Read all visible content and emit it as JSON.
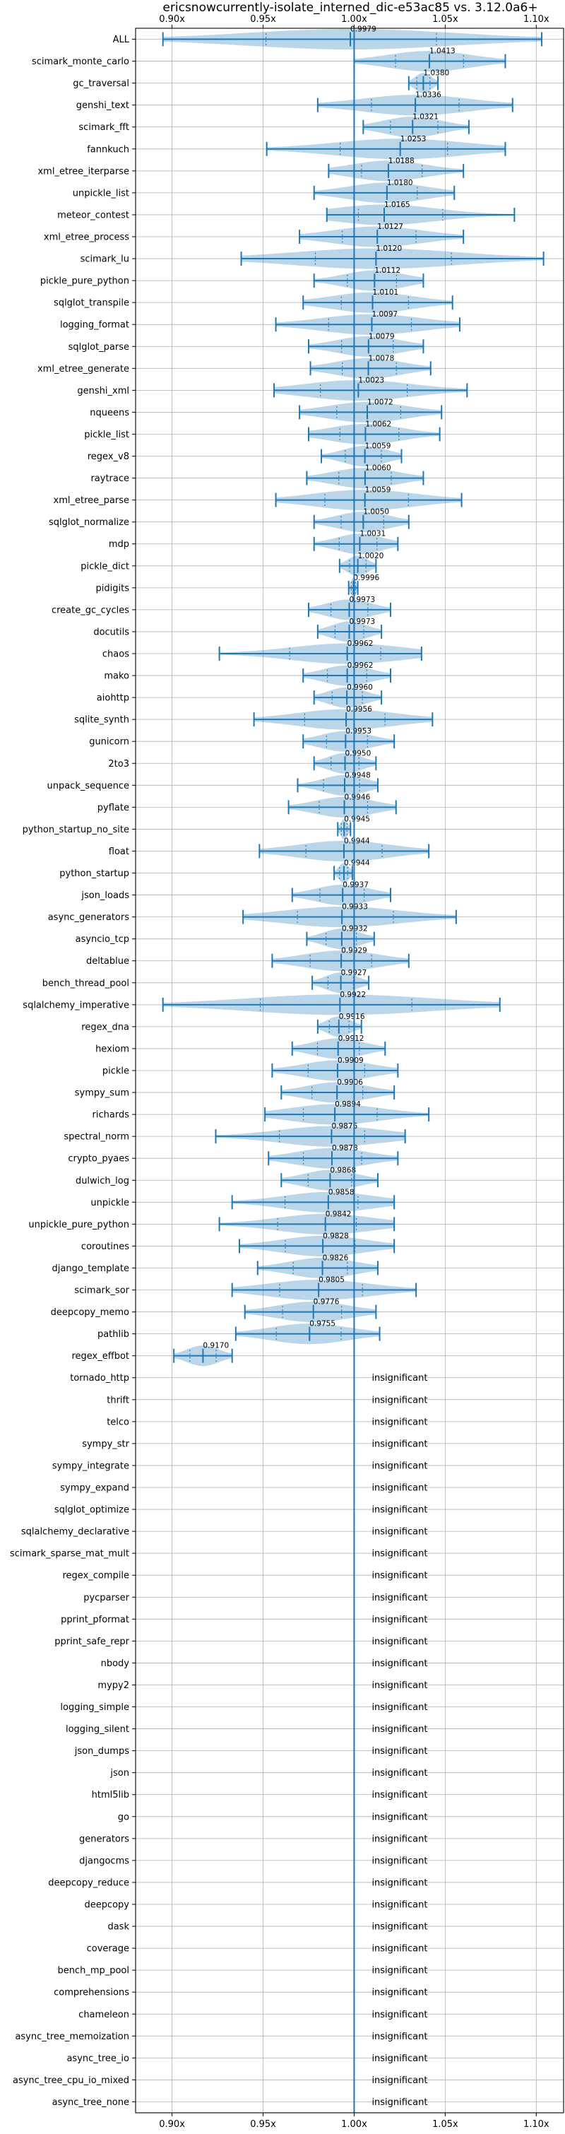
{
  "chart_data": {
    "type": "violin",
    "title": "ericsnowcurrently-isolate_interned_dic-e53ac85 vs. 3.12.0a6+",
    "xlim": [
      0.88,
      1.115
    ],
    "x_ticks": [
      0.9,
      0.95,
      1.0,
      1.05,
      1.1
    ],
    "x_tick_labels": [
      "0.90x",
      "0.95x",
      "1.00x",
      "1.05x",
      "1.10x"
    ],
    "reference_line": 1.0,
    "grid": true,
    "insignificant_text": "insignificant",
    "rows": [
      {
        "name": "ALL",
        "value": 0.9979,
        "label": "0.9979",
        "min": 0.895,
        "max": 1.103
      },
      {
        "name": "scimark_monte_carlo",
        "value": 1.0413,
        "label": "1.0413",
        "min": 1.0,
        "max": 1.083
      },
      {
        "name": "gc_traversal",
        "value": 1.038,
        "label": "1.0380",
        "min": 1.03,
        "max": 1.046
      },
      {
        "name": "genshi_text",
        "value": 1.0336,
        "label": "1.0336",
        "min": 0.98,
        "max": 1.087
      },
      {
        "name": "scimark_fft",
        "value": 1.0321,
        "label": "1.0321",
        "min": 1.005,
        "max": 1.063
      },
      {
        "name": "fannkuch",
        "value": 1.0253,
        "label": "1.0253",
        "min": 0.952,
        "max": 1.083
      },
      {
        "name": "xml_etree_iterparse",
        "value": 1.0188,
        "label": "1.0188",
        "min": 0.986,
        "max": 1.06
      },
      {
        "name": "unpickle_list",
        "value": 1.018,
        "label": "1.0180",
        "min": 0.978,
        "max": 1.055
      },
      {
        "name": "meteor_contest",
        "value": 1.0165,
        "label": "1.0165",
        "min": 0.985,
        "max": 1.088
      },
      {
        "name": "xml_etree_process",
        "value": 1.0127,
        "label": "1.0127",
        "min": 0.97,
        "max": 1.06
      },
      {
        "name": "scimark_lu",
        "value": 1.012,
        "label": "1.0120",
        "min": 0.938,
        "max": 1.104
      },
      {
        "name": "pickle_pure_python",
        "value": 1.0112,
        "label": "1.0112",
        "min": 0.978,
        "max": 1.038
      },
      {
        "name": "sqlglot_transpile",
        "value": 1.0101,
        "label": "1.0101",
        "min": 0.972,
        "max": 1.054
      },
      {
        "name": "logging_format",
        "value": 1.0097,
        "label": "1.0097",
        "min": 0.957,
        "max": 1.058
      },
      {
        "name": "sqlglot_parse",
        "value": 1.0079,
        "label": "1.0079",
        "min": 0.975,
        "max": 1.038
      },
      {
        "name": "xml_etree_generate",
        "value": 1.0078,
        "label": "1.0078",
        "min": 0.976,
        "max": 1.042
      },
      {
        "name": "genshi_xml",
        "value": 1.0023,
        "label": "1.0023",
        "min": 0.956,
        "max": 1.062
      },
      {
        "name": "nqueens",
        "value": 1.0072,
        "label": "1.0072",
        "min": 0.97,
        "max": 1.048
      },
      {
        "name": "pickle_list",
        "value": 1.0062,
        "label": "1.0062",
        "min": 0.975,
        "max": 1.047
      },
      {
        "name": "regex_v8",
        "value": 1.0059,
        "label": "1.0059",
        "min": 0.982,
        "max": 1.026
      },
      {
        "name": "raytrace",
        "value": 1.006,
        "label": "1.0060",
        "min": 0.974,
        "max": 1.038
      },
      {
        "name": "xml_etree_parse",
        "value": 1.0059,
        "label": "1.0059",
        "min": 0.957,
        "max": 1.059
      },
      {
        "name": "sqlglot_normalize",
        "value": 1.005,
        "label": "1.0050",
        "min": 0.978,
        "max": 1.03
      },
      {
        "name": "mdp",
        "value": 1.0031,
        "label": "1.0031",
        "min": 0.978,
        "max": 1.024
      },
      {
        "name": "pickle_dict",
        "value": 1.002,
        "label": "1.0020",
        "min": 0.992,
        "max": 1.012
      },
      {
        "name": "pidigits",
        "value": 0.9996,
        "label": "0.9996",
        "min": 0.997,
        "max": 1.002
      },
      {
        "name": "create_gc_cycles",
        "value": 0.9973,
        "label": "0.9973",
        "min": 0.975,
        "max": 1.02
      },
      {
        "name": "docutils",
        "value": 0.9973,
        "label": "0.9973",
        "min": 0.98,
        "max": 1.015
      },
      {
        "name": "chaos",
        "value": 0.9962,
        "label": "0.9962",
        "min": 0.926,
        "max": 1.037
      },
      {
        "name": "mako",
        "value": 0.9962,
        "label": "0.9962",
        "min": 0.972,
        "max": 1.02
      },
      {
        "name": "aiohttp",
        "value": 0.996,
        "label": "0.9960",
        "min": 0.978,
        "max": 1.015
      },
      {
        "name": "sqlite_synth",
        "value": 0.9956,
        "label": "0.9956",
        "min": 0.945,
        "max": 1.043
      },
      {
        "name": "gunicorn",
        "value": 0.9953,
        "label": "0.9953",
        "min": 0.972,
        "max": 1.022
      },
      {
        "name": "2to3",
        "value": 0.995,
        "label": "0.9950",
        "min": 0.978,
        "max": 1.012
      },
      {
        "name": "unpack_sequence",
        "value": 0.9948,
        "label": "0.9948",
        "min": 0.969,
        "max": 1.013
      },
      {
        "name": "pyflate",
        "value": 0.9946,
        "label": "0.9946",
        "min": 0.964,
        "max": 1.023
      },
      {
        "name": "python_startup_no_site",
        "value": 0.9945,
        "label": "0.9945",
        "min": 0.991,
        "max": 0.998
      },
      {
        "name": "float",
        "value": 0.9944,
        "label": "0.9944",
        "min": 0.948,
        "max": 1.041
      },
      {
        "name": "python_startup",
        "value": 0.9944,
        "label": "0.9944",
        "min": 0.989,
        "max": 0.999
      },
      {
        "name": "json_loads",
        "value": 0.9937,
        "label": "0.9937",
        "min": 0.966,
        "max": 1.02
      },
      {
        "name": "async_generators",
        "value": 0.9933,
        "label": "0.9933",
        "min": 0.939,
        "max": 1.056
      },
      {
        "name": "asyncio_tcp",
        "value": 0.9932,
        "label": "0.9932",
        "min": 0.974,
        "max": 1.011
      },
      {
        "name": "deltablue",
        "value": 0.9929,
        "label": "0.9929",
        "min": 0.955,
        "max": 1.03
      },
      {
        "name": "bench_thread_pool",
        "value": 0.9927,
        "label": "0.9927",
        "min": 0.977,
        "max": 1.008
      },
      {
        "name": "sqlalchemy_imperative",
        "value": 0.9922,
        "label": "0.9922",
        "min": 0.895,
        "max": 1.08
      },
      {
        "name": "regex_dna",
        "value": 0.9916,
        "label": "0.9916",
        "min": 0.98,
        "max": 1.004
      },
      {
        "name": "hexiom",
        "value": 0.9912,
        "label": "0.9912",
        "min": 0.966,
        "max": 1.017
      },
      {
        "name": "pickle",
        "value": 0.9909,
        "label": "0.9909",
        "min": 0.955,
        "max": 1.024
      },
      {
        "name": "sympy_sum",
        "value": 0.9906,
        "label": "0.9906",
        "min": 0.96,
        "max": 1.022
      },
      {
        "name": "richards",
        "value": 0.9894,
        "label": "0.9894",
        "min": 0.951,
        "max": 1.041
      },
      {
        "name": "spectral_norm",
        "value": 0.9876,
        "label": "0.9876",
        "min": 0.924,
        "max": 1.028
      },
      {
        "name": "crypto_pyaes",
        "value": 0.9878,
        "label": "0.9878",
        "min": 0.953,
        "max": 1.024
      },
      {
        "name": "dulwich_log",
        "value": 0.9868,
        "label": "0.9868",
        "min": 0.96,
        "max": 1.013
      },
      {
        "name": "unpickle",
        "value": 0.9858,
        "label": "0.9858",
        "min": 0.933,
        "max": 1.022
      },
      {
        "name": "unpickle_pure_python",
        "value": 0.9842,
        "label": "0.9842",
        "min": 0.926,
        "max": 1.022
      },
      {
        "name": "coroutines",
        "value": 0.9828,
        "label": "0.9828",
        "min": 0.937,
        "max": 1.022
      },
      {
        "name": "django_template",
        "value": 0.9826,
        "label": "0.9826",
        "min": 0.947,
        "max": 1.013
      },
      {
        "name": "scimark_sor",
        "value": 0.9805,
        "label": "0.9805",
        "min": 0.933,
        "max": 1.034
      },
      {
        "name": "deepcopy_memo",
        "value": 0.9776,
        "label": "0.9776",
        "min": 0.94,
        "max": 1.012
      },
      {
        "name": "pathlib",
        "value": 0.9755,
        "label": "0.9755",
        "min": 0.935,
        "max": 1.014
      },
      {
        "name": "regex_effbot",
        "value": 0.917,
        "label": "0.9170",
        "min": 0.901,
        "max": 0.933
      },
      {
        "name": "tornado_http"
      },
      {
        "name": "thrift"
      },
      {
        "name": "telco"
      },
      {
        "name": "sympy_str"
      },
      {
        "name": "sympy_integrate"
      },
      {
        "name": "sympy_expand"
      },
      {
        "name": "sqlglot_optimize"
      },
      {
        "name": "sqlalchemy_declarative"
      },
      {
        "name": "scimark_sparse_mat_mult"
      },
      {
        "name": "regex_compile"
      },
      {
        "name": "pycparser"
      },
      {
        "name": "pprint_pformat"
      },
      {
        "name": "pprint_safe_repr"
      },
      {
        "name": "nbody"
      },
      {
        "name": "mypy2"
      },
      {
        "name": "logging_simple"
      },
      {
        "name": "logging_silent"
      },
      {
        "name": "json_dumps"
      },
      {
        "name": "json"
      },
      {
        "name": "html5lib"
      },
      {
        "name": "go"
      },
      {
        "name": "generators"
      },
      {
        "name": "djangocms"
      },
      {
        "name": "deepcopy_reduce"
      },
      {
        "name": "deepcopy"
      },
      {
        "name": "dask"
      },
      {
        "name": "coverage"
      },
      {
        "name": "bench_mp_pool"
      },
      {
        "name": "comprehensions"
      },
      {
        "name": "chameleon"
      },
      {
        "name": "async_tree_memoization"
      },
      {
        "name": "async_tree_io"
      },
      {
        "name": "async_tree_cpu_io_mixed"
      },
      {
        "name": "async_tree_none"
      }
    ]
  }
}
